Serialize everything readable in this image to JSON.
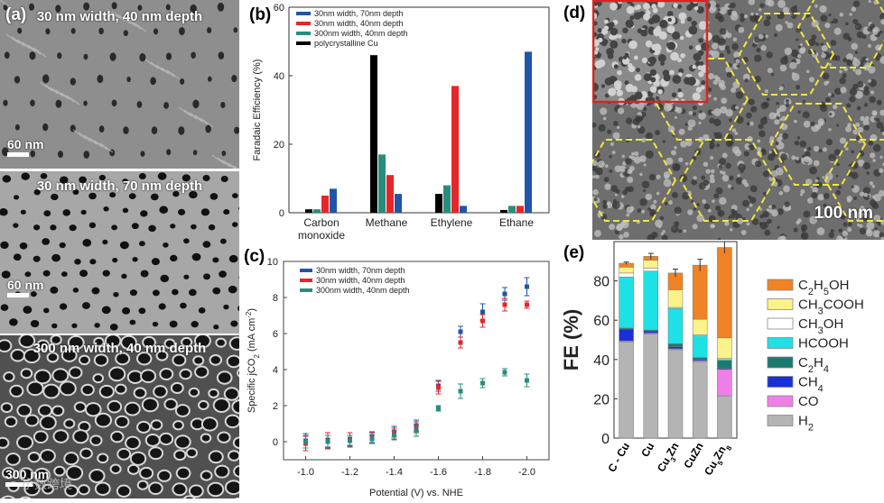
{
  "panel_a": {
    "letter": "(a)",
    "images": [
      {
        "title": "30 nm width, 40 nm depth",
        "scale": "60 nm"
      },
      {
        "title": "30 nm width, 70 nm depth",
        "scale": "60 nm"
      },
      {
        "title": "300 nm width, 40 nm depth",
        "scale": "300 nm"
      }
    ],
    "watermark": "小数跨境"
  },
  "panel_d": {
    "letter": "(d)",
    "scale": "100 nm"
  },
  "colors": {
    "blue": "#2155a8",
    "red": "#e5262b",
    "teal": "#2a8c7e",
    "black": "#000000",
    "e_c2h5oh": "#f08326",
    "e_ch3cooh": "#fbf28a",
    "e_ch3oh": "#ffffff",
    "e_hcooh": "#1ee1e6",
    "e_c2h4": "#1a7a72",
    "e_ch4": "#1830d8",
    "e_co": "#ef7ee7",
    "e_h2": "#b4b4b4"
  },
  "chart_data": [
    {
      "panel": "(b)",
      "type": "bar",
      "ylabel": "Faradaic Efficiency (%)",
      "ylim": [
        0,
        60
      ],
      "yticks": [
        "0",
        "20",
        "40",
        "60"
      ],
      "categories": [
        "Carbon\nmonoxide",
        "Methane",
        "Ethylene",
        "Ethane"
      ],
      "category_lines": [
        [
          "Carbon",
          "monoxide"
        ],
        [
          "Methane"
        ],
        [
          "Ethylene"
        ],
        [
          "Ethane"
        ]
      ],
      "series": [
        {
          "name": "polycrystalline Cu",
          "values": [
            1,
            46,
            5.5,
            0.8
          ]
        },
        {
          "name": "300nm width, 40nm depth",
          "values": [
            1,
            17,
            8,
            2
          ]
        },
        {
          "name": "30nm width, 40nm depth",
          "values": [
            5,
            11,
            37,
            2
          ]
        },
        {
          "name": "30nm width, 70nm depth",
          "values": [
            7,
            5.5,
            2,
            47
          ]
        }
      ],
      "legend_order": [
        "30nm width, 70nm depth",
        "30nm width, 40nm depth",
        "300nm width, 40nm depth",
        "polycrystalline Cu"
      ]
    },
    {
      "panel": "(c)",
      "type": "scatter",
      "xlabel": "Potential (V) vs. NHE",
      "ylabel": "Specific jCO2 (mA cm-2)",
      "xlim": [
        -0.9,
        -2.1
      ],
      "ylim": [
        -1,
        10
      ],
      "xticks": [
        "-1.0",
        "-1.2",
        "-1.4",
        "-1.6",
        "-1.8",
        "-2.0"
      ],
      "yticks": [
        "0",
        "2",
        "4",
        "6",
        "8",
        "10"
      ],
      "series": [
        {
          "name": "30nm width, 70nm depth",
          "x": [
            -1.0,
            -1.1,
            -1.2,
            -1.3,
            -1.4,
            -1.5,
            -1.6,
            -1.7,
            -1.8,
            -1.9,
            -2.0
          ],
          "y": [
            0.05,
            0.1,
            0.15,
            0.25,
            0.55,
            0.9,
            3.1,
            6.1,
            7.2,
            8.2,
            8.6
          ],
          "err": [
            0.4,
            0.4,
            0.35,
            0.3,
            0.3,
            0.3,
            0.3,
            0.3,
            0.45,
            0.35,
            0.5
          ]
        },
        {
          "name": "30nm width, 40nm depth",
          "x": [
            -1.0,
            -1.1,
            -1.2,
            -1.3,
            -1.4,
            -1.5,
            -1.6,
            -1.7,
            -1.8,
            -1.9,
            -2.0
          ],
          "y": [
            -0.1,
            0.05,
            0.1,
            0.2,
            0.45,
            0.8,
            3.0,
            5.5,
            6.7,
            7.6,
            7.6
          ],
          "err": [
            0.4,
            0.45,
            0.4,
            0.3,
            0.3,
            0.3,
            0.35,
            0.3,
            0.35,
            0.35,
            0.2
          ]
        },
        {
          "name": "300nm width, 40nm depth",
          "x": [
            -1.0,
            -1.1,
            -1.2,
            -1.3,
            -1.4,
            -1.5,
            -1.6,
            -1.7,
            -1.8,
            -1.9,
            -2.0
          ],
          "y": [
            0.0,
            0.0,
            0.05,
            0.15,
            0.35,
            0.6,
            1.85,
            2.8,
            3.25,
            3.85,
            3.4
          ],
          "err": [
            0.35,
            0.35,
            0.3,
            0.25,
            0.25,
            0.3,
            0.15,
            0.4,
            0.25,
            0.2,
            0.35
          ]
        }
      ]
    },
    {
      "panel": "(e)",
      "type": "bar",
      "stacked": true,
      "ylabel": "FE (%)",
      "ylim": [
        0,
        100
      ],
      "yticks": [
        "0",
        "20",
        "40",
        "60",
        "80"
      ],
      "categories": [
        "C - Cu",
        "Cu",
        "Cu3Zn",
        "CuZn",
        "Cu5Zn8"
      ],
      "category_parts": [
        [
          [
            "C - Cu",
            false
          ]
        ],
        [
          [
            "Cu",
            false
          ]
        ],
        [
          [
            "Cu",
            false
          ],
          [
            "3",
            true
          ],
          [
            "Zn",
            false
          ]
        ],
        [
          [
            "CuZn",
            false
          ]
        ],
        [
          [
            "Cu",
            false
          ],
          [
            "5",
            true
          ],
          [
            "Zn",
            false
          ],
          [
            "8",
            true
          ]
        ]
      ],
      "series": [
        {
          "name": "H2",
          "values": [
            49,
            53,
            45,
            39,
            21.5
          ]
        },
        {
          "name": "CO",
          "values": [
            0.5,
            0.5,
            0.5,
            0.5,
            13.5
          ]
        },
        {
          "name": "CH4",
          "values": [
            6,
            1,
            1,
            0.5,
            0.5
          ]
        },
        {
          "name": "C2H4",
          "values": [
            0.5,
            0.5,
            1.5,
            1,
            4
          ]
        },
        {
          "name": "HCOOH",
          "values": [
            26,
            30,
            18,
            11,
            0.5
          ]
        },
        {
          "name": "CH3OH",
          "values": [
            2,
            1.5,
            0.5,
            0.5,
            0.5
          ]
        },
        {
          "name": "CH3COOH",
          "values": [
            3,
            4,
            9,
            8,
            10.5
          ]
        },
        {
          "name": "C2H5OH",
          "values": [
            2,
            2,
            8.5,
            27.5,
            46
          ]
        }
      ],
      "totals_err": [
        0.6,
        1.5,
        2,
        3,
        3
      ]
    }
  ],
  "legend_e": [
    {
      "name": "C2H5OH",
      "parts": [
        [
          "C",
          false
        ],
        [
          "2",
          true
        ],
        [
          "H",
          false
        ],
        [
          "5",
          true
        ],
        [
          "OH",
          false
        ]
      ]
    },
    {
      "name": "CH3COOH",
      "parts": [
        [
          "CH",
          false
        ],
        [
          "3",
          true
        ],
        [
          "COOH",
          false
        ]
      ]
    },
    {
      "name": "CH3OH",
      "parts": [
        [
          "CH",
          false
        ],
        [
          "3",
          true
        ],
        [
          "OH",
          false
        ]
      ]
    },
    {
      "name": "HCOOH",
      "parts": [
        [
          "HCOOH",
          false
        ]
      ]
    },
    {
      "name": "C2H4",
      "parts": [
        [
          "C",
          false
        ],
        [
          "2",
          true
        ],
        [
          "H",
          false
        ],
        [
          "4",
          true
        ]
      ]
    },
    {
      "name": "CH4",
      "parts": [
        [
          "CH",
          false
        ],
        [
          "4",
          true
        ]
      ]
    },
    {
      "name": "CO",
      "parts": [
        [
          "CO",
          false
        ]
      ]
    },
    {
      "name": "H2",
      "parts": [
        [
          "H",
          false
        ],
        [
          "2",
          true
        ]
      ]
    }
  ],
  "ylabel_c_parts": [
    [
      "Specific j",
      false
    ],
    [
      "CO",
      false
    ],
    [
      "2",
      true
    ],
    [
      " (mA cm",
      false
    ],
    [
      "-2",
      "sup"
    ],
    [
      ")",
      false
    ]
  ]
}
